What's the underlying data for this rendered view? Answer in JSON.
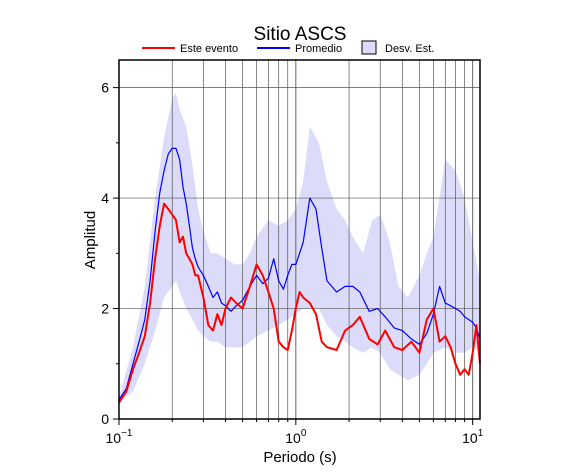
{
  "chart_data": {
    "type": "line",
    "title": "Sitio ASCS",
    "xlabel": "Periodo (s)",
    "ylabel": "Amplitud",
    "xscale": "log",
    "xlim": [
      0.1,
      11.0
    ],
    "ylim": [
      0,
      6.5
    ],
    "grid": "vertical log gridlines; horizontal gridlines at 2, 4, 6",
    "legend_position": "top",
    "x_tick_labels": [
      {
        "value": 0.1,
        "base": "10",
        "exp": "−1"
      },
      {
        "value": 1,
        "base": "10",
        "exp": "0"
      },
      {
        "value": 10,
        "base": "10",
        "exp": "1"
      }
    ],
    "y_ticks": [
      0,
      2,
      4,
      6
    ],
    "legend": [
      {
        "label": "Este evento",
        "kind": "line",
        "color": "#ff0000"
      },
      {
        "label": "Promedio",
        "kind": "line",
        "color": "#0000ff"
      },
      {
        "label": "Desv. Est.",
        "kind": "patch",
        "color": "#dcdcfa"
      }
    ],
    "series": [
      {
        "name": "Este evento",
        "color": "#ff0000",
        "x": [
          0.1,
          0.11,
          0.12,
          0.13,
          0.14,
          0.15,
          0.16,
          0.17,
          0.18,
          0.19,
          0.2,
          0.21,
          0.22,
          0.23,
          0.24,
          0.25,
          0.26,
          0.27,
          0.28,
          0.3,
          0.32,
          0.34,
          0.36,
          0.38,
          0.4,
          0.43,
          0.46,
          0.5,
          0.55,
          0.6,
          0.65,
          0.7,
          0.75,
          0.8,
          0.85,
          0.9,
          0.95,
          1.0,
          1.05,
          1.1,
          1.2,
          1.3,
          1.4,
          1.5,
          1.7,
          1.9,
          2.1,
          2.3,
          2.6,
          2.9,
          3.2,
          3.6,
          4.0,
          4.5,
          5.0,
          5.5,
          6.0,
          6.5,
          7.0,
          7.5,
          8.0,
          8.5,
          9.0,
          9.5,
          10.0,
          10.5,
          11.0
        ],
        "y": [
          0.3,
          0.5,
          0.9,
          1.2,
          1.5,
          2.1,
          2.9,
          3.5,
          3.9,
          3.8,
          3.7,
          3.6,
          3.2,
          3.3,
          3.0,
          2.9,
          2.8,
          2.6,
          2.6,
          2.2,
          1.7,
          1.6,
          1.9,
          1.7,
          2.0,
          2.2,
          2.1,
          2.0,
          2.4,
          2.8,
          2.6,
          2.3,
          2.0,
          1.4,
          1.3,
          1.25,
          1.6,
          2.0,
          2.3,
          2.2,
          2.1,
          1.9,
          1.4,
          1.3,
          1.25,
          1.6,
          1.7,
          1.85,
          1.45,
          1.35,
          1.6,
          1.3,
          1.25,
          1.4,
          1.2,
          1.8,
          2.0,
          1.4,
          1.5,
          1.3,
          1.0,
          0.8,
          0.9,
          0.8,
          1.2,
          1.7,
          1.0
        ]
      },
      {
        "name": "Promedio",
        "color": "#0000ff",
        "x": [
          0.1,
          0.11,
          0.12,
          0.13,
          0.14,
          0.15,
          0.16,
          0.17,
          0.18,
          0.19,
          0.2,
          0.21,
          0.22,
          0.23,
          0.24,
          0.25,
          0.26,
          0.27,
          0.28,
          0.3,
          0.32,
          0.34,
          0.36,
          0.38,
          0.4,
          0.43,
          0.46,
          0.5,
          0.55,
          0.6,
          0.65,
          0.7,
          0.75,
          0.8,
          0.85,
          0.9,
          0.95,
          1.0,
          1.05,
          1.1,
          1.2,
          1.3,
          1.4,
          1.5,
          1.7,
          1.9,
          2.1,
          2.3,
          2.6,
          2.9,
          3.2,
          3.6,
          4.0,
          4.5,
          5.0,
          5.5,
          6.0,
          6.5,
          7.0,
          7.5,
          8.0,
          8.5,
          9.0,
          9.5,
          10.0,
          10.5,
          11.0
        ],
        "y": [
          0.35,
          0.55,
          1.0,
          1.4,
          1.8,
          2.5,
          3.4,
          4.1,
          4.5,
          4.8,
          4.9,
          4.9,
          4.7,
          4.2,
          3.9,
          3.5,
          3.1,
          2.9,
          2.75,
          2.6,
          2.4,
          2.2,
          2.3,
          2.1,
          2.05,
          1.95,
          2.05,
          2.15,
          2.4,
          2.6,
          2.45,
          2.55,
          2.9,
          2.5,
          2.35,
          2.6,
          2.8,
          2.8,
          3.0,
          3.2,
          4.0,
          3.8,
          3.1,
          2.5,
          2.3,
          2.4,
          2.4,
          2.3,
          1.95,
          2.0,
          1.85,
          1.65,
          1.6,
          1.45,
          1.35,
          1.55,
          1.9,
          2.4,
          2.1,
          2.05,
          2.0,
          1.95,
          1.85,
          1.8,
          1.75,
          1.65,
          1.45
        ]
      }
    ],
    "std_band": {
      "name": "Desv. Est.",
      "color": "#dcdcfa",
      "x": [
        0.1,
        0.12,
        0.14,
        0.16,
        0.18,
        0.2,
        0.21,
        0.22,
        0.24,
        0.26,
        0.28,
        0.3,
        0.33,
        0.36,
        0.4,
        0.45,
        0.5,
        0.55,
        0.6,
        0.7,
        0.8,
        0.9,
        1.0,
        1.1,
        1.2,
        1.35,
        1.5,
        1.7,
        1.9,
        2.1,
        2.4,
        2.7,
        3.0,
        3.4,
        3.8,
        4.3,
        5.0,
        5.5,
        6.0,
        7.0,
        8.0,
        9.0,
        10.0,
        11.0
      ],
      "upper": [
        0.4,
        1.3,
        2.4,
        4.0,
        5.1,
        5.8,
        5.9,
        5.6,
        5.3,
        4.6,
        3.8,
        3.4,
        3.0,
        3.0,
        2.9,
        2.8,
        2.8,
        3.0,
        3.3,
        3.6,
        3.5,
        3.6,
        3.8,
        4.3,
        5.3,
        5.0,
        4.3,
        3.8,
        3.6,
        3.3,
        3.0,
        3.6,
        3.7,
        3.2,
        2.4,
        2.2,
        2.6,
        3.0,
        3.3,
        4.7,
        4.5,
        4.0,
        3.2,
        2.5
      ],
      "lower": [
        0.3,
        0.5,
        1.0,
        1.6,
        2.2,
        2.4,
        2.5,
        2.3,
        2.0,
        1.8,
        1.6,
        1.5,
        1.4,
        1.4,
        1.3,
        1.3,
        1.3,
        1.4,
        1.5,
        1.6,
        1.7,
        1.8,
        1.9,
        2.0,
        2.0,
        2.0,
        1.7,
        1.5,
        1.4,
        1.3,
        1.2,
        1.3,
        1.2,
        0.9,
        0.8,
        0.7,
        0.8,
        1.0,
        1.2,
        1.3,
        1.2,
        1.2,
        1.3,
        1.2
      ]
    }
  }
}
